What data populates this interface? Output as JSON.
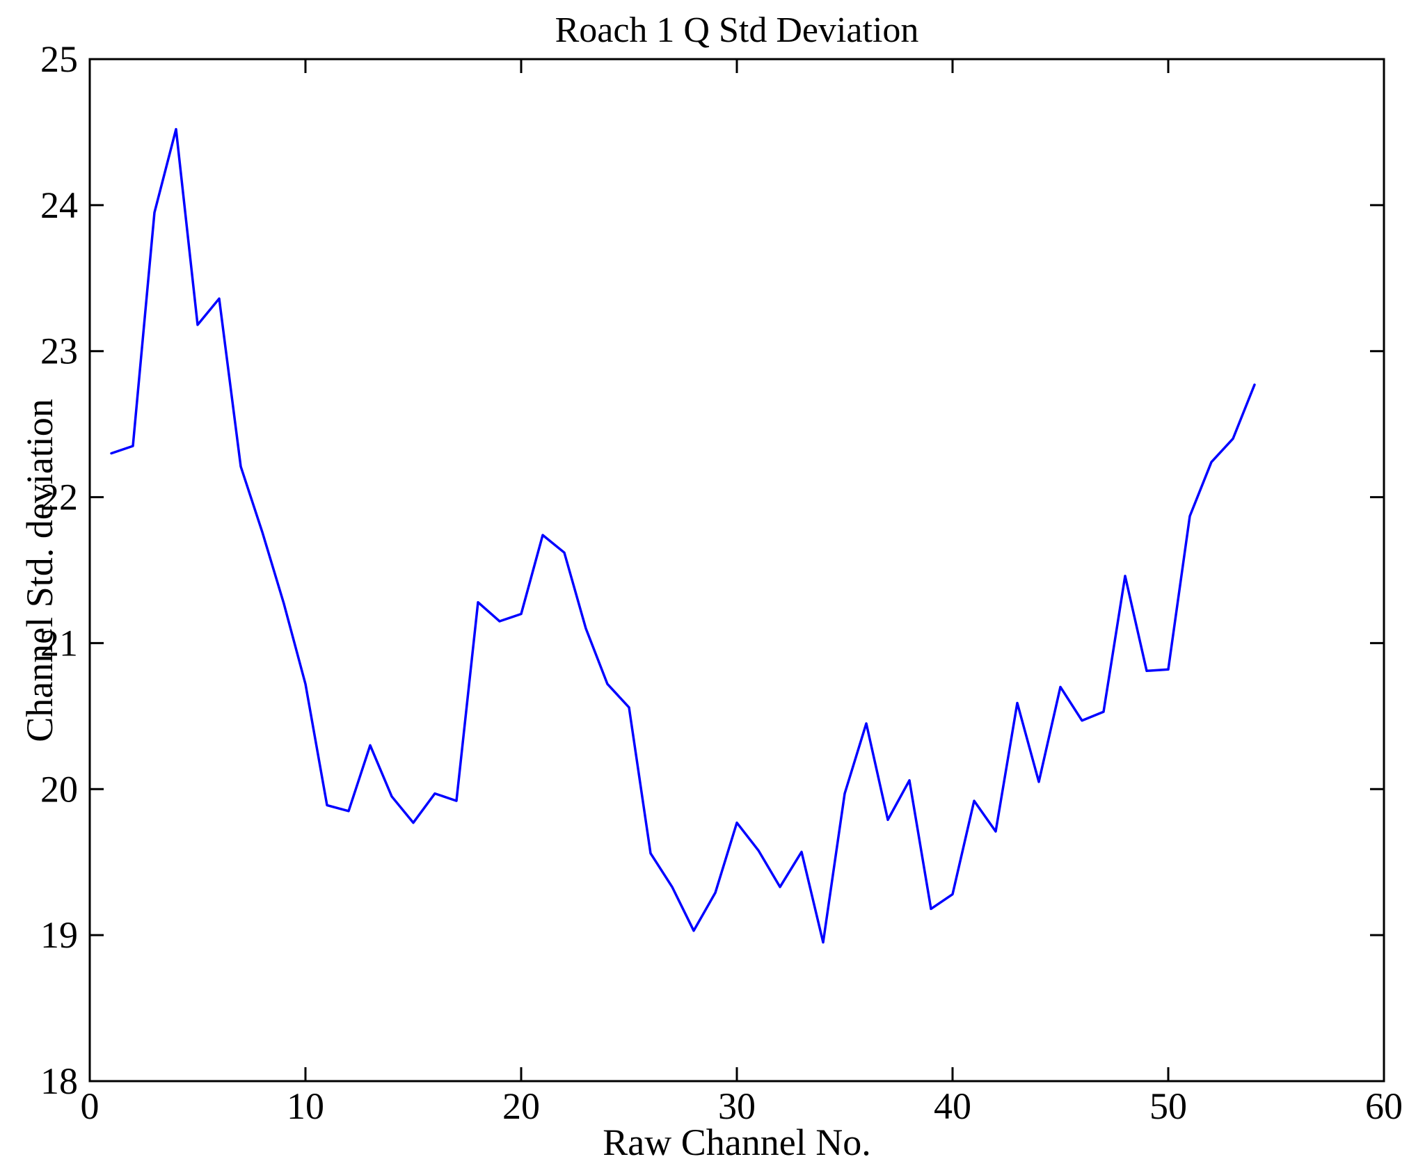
{
  "title": "Roach 1 Q Std Deviation",
  "chart_data": {
    "type": "line",
    "title": "Roach 1 Q Std Deviation",
    "xlabel": "Raw Channel No.",
    "ylabel": "Channel Std. deviation",
    "xlim": [
      0,
      60
    ],
    "ylim": [
      18,
      25
    ],
    "x_ticks": [
      0,
      10,
      20,
      30,
      40,
      50,
      60
    ],
    "y_ticks": [
      18,
      19,
      20,
      21,
      22,
      23,
      24,
      25
    ],
    "grid": false,
    "legend": false,
    "line_color": "#0000ff",
    "axis_color": "#000000",
    "x": [
      1,
      2,
      3,
      4,
      5,
      6,
      7,
      8,
      9,
      10,
      11,
      12,
      13,
      14,
      15,
      16,
      17,
      18,
      19,
      20,
      21,
      22,
      23,
      24,
      25,
      26,
      27,
      28,
      29,
      30,
      31,
      32,
      33,
      34,
      35,
      36,
      37,
      38,
      39,
      40,
      41,
      42,
      43,
      44,
      45,
      46,
      47,
      48,
      49,
      50,
      51,
      52,
      53,
      54
    ],
    "y": [
      22.3,
      22.35,
      23.95,
      24.52,
      23.18,
      23.36,
      22.21,
      21.76,
      21.27,
      20.72,
      19.89,
      19.85,
      20.3,
      19.95,
      19.77,
      19.97,
      19.92,
      21.28,
      21.15,
      21.2,
      21.74,
      21.62,
      21.1,
      20.72,
      20.56,
      19.56,
      19.33,
      19.03,
      19.29,
      19.77,
      19.58,
      19.33,
      19.57,
      18.95,
      19.97,
      20.45,
      19.79,
      20.06,
      19.18,
      19.28,
      19.92,
      19.71,
      20.59,
      20.05,
      20.7,
      20.47,
      20.53,
      21.46,
      20.81,
      20.82,
      21.87,
      22.24,
      22.4,
      22.77
    ]
  }
}
